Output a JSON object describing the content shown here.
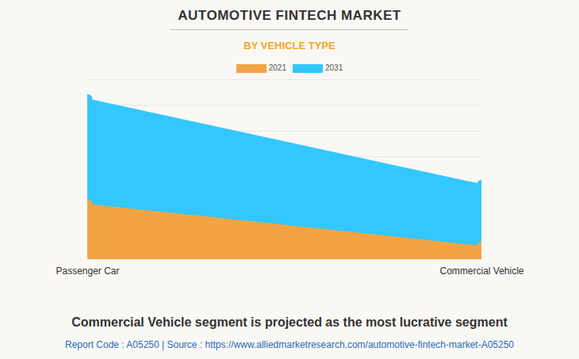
{
  "chart_data": {
    "type": "area",
    "title": "AUTOMOTIVE FINTECH MARKET",
    "subtitle": "BY VEHICLE TYPE",
    "categories": [
      "Passenger Car",
      "Commercial Vehicle"
    ],
    "series": [
      {
        "name": "2021",
        "color": "#f2a444",
        "values": [
          2.15,
          0.52
        ]
      },
      {
        "name": "2031",
        "color": "#33c7ff",
        "values": [
          6.25,
          2.92
        ]
      }
    ],
    "ylim": [
      0,
      7
    ],
    "yticks": [
      0,
      1,
      2,
      3,
      4,
      5,
      6,
      7
    ],
    "grid": true,
    "tick_labels": "x",
    "marker": "circle",
    "caption": "Commercial Vehicle segment is projected as the most lucrative segment",
    "source": "Report Code : A05250  |  Source : https://www.alliedmarketresearch.com/automotive-fintech-market-A05250"
  }
}
